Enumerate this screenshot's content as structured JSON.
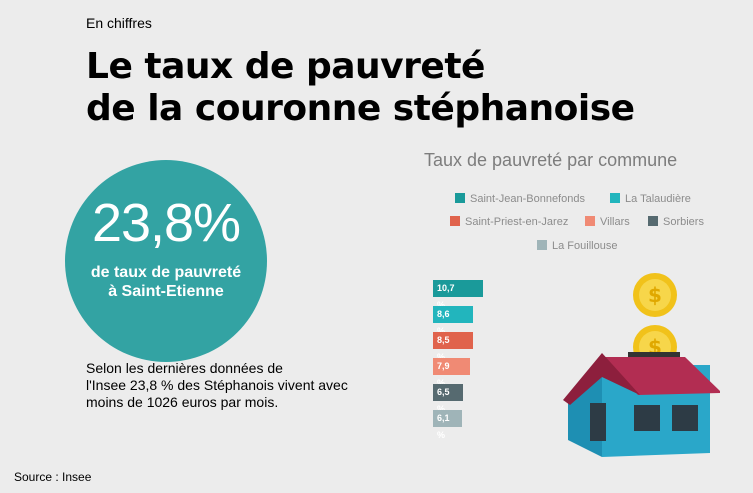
{
  "header": {
    "kicker": "En chiffres",
    "title_line1": "Le taux de pauvreté",
    "title_line2": "de la couronne stéphanoise"
  },
  "highlight": {
    "value": "23,8%",
    "caption_line1": "de taux de pauvreté",
    "caption_line2": "à Saint-Etienne",
    "color": "#33a3a3"
  },
  "description": {
    "line1": "Selon les dernières données de",
    "line2": "l'Insee 23,8 % des Stéphanois vivent avec",
    "line3": "moins de 1026 euros par mois."
  },
  "source": "Source : Insee",
  "chart_data": {
    "type": "bar",
    "title": "Taux de pauvreté par commune",
    "unit": "%",
    "categories": [
      "Saint-Jean-Bonnefonds",
      "La Talaudière",
      "Saint-Priest-en-Jarez",
      "Villars",
      "Sorbiers",
      "La Fouillouse"
    ],
    "values": [
      10.7,
      8.6,
      8.5,
      7.9,
      6.5,
      6.1
    ],
    "labels": [
      "10,7 %",
      "8,6 %",
      "8,5 %",
      "7,9 %",
      "6,5 %",
      "6,1 %"
    ],
    "colors": [
      "#1a9a9a",
      "#22b5bd",
      "#e0634c",
      "#f08a74",
      "#566a70",
      "#9fb4b8"
    ],
    "legend_position": "top"
  },
  "illustration": {
    "icons": [
      "coin-icon",
      "house-icon"
    ],
    "colors": {
      "roof": "#b22d52",
      "wall": "#2aa7c9",
      "coin": "#f1c21a"
    }
  }
}
